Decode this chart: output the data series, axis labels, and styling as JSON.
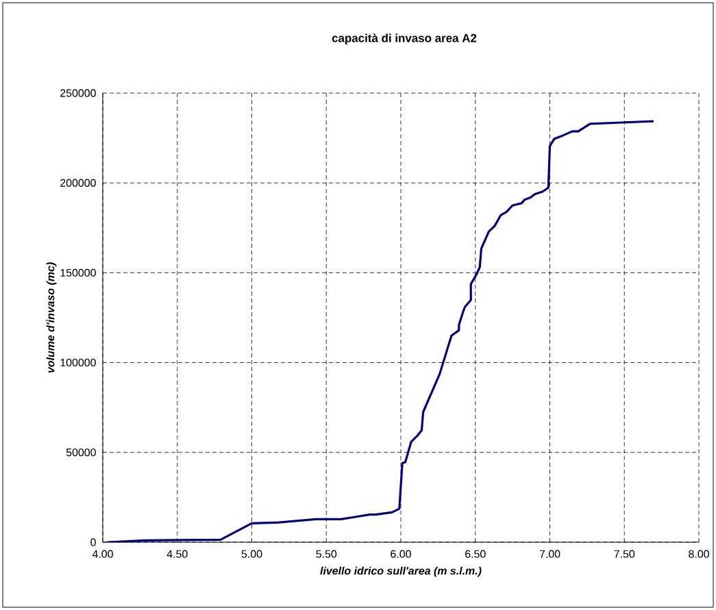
{
  "chart_data": {
    "type": "line",
    "title": "capacità di invaso area A2",
    "xlabel": "livello idrico sull'area (m s.l.m.)",
    "ylabel": "volume d'invaso (mc)",
    "x": [
      4.03,
      4.28,
      4.79,
      5.0,
      5.18,
      5.43,
      5.6,
      5.79,
      5.83,
      5.94,
      5.99,
      6.01,
      6.03,
      6.07,
      6.11,
      6.14,
      6.15,
      6.26,
      6.34,
      6.39,
      6.39,
      6.42,
      6.43,
      6.47,
      6.47,
      6.51,
      6.53,
      6.54,
      6.59,
      6.63,
      6.67,
      6.71,
      6.75,
      6.81,
      6.83,
      6.87,
      6.9,
      6.95,
      6.99,
      7.0,
      7.03,
      7.09,
      7.15,
      7.19,
      7.27,
      7.45,
      7.69
    ],
    "series": [
      {
        "color": "#000080",
        "values": [
          0,
          1000,
          1400,
          10500,
          11000,
          12800,
          12800,
          15400,
          15400,
          16600,
          18600,
          44000,
          44600,
          56000,
          59200,
          62300,
          72500,
          93500,
          115000,
          118000,
          121000,
          128800,
          131000,
          134800,
          143700,
          149400,
          153200,
          163400,
          172900,
          176100,
          182000,
          183900,
          187500,
          188700,
          190600,
          191900,
          193800,
          195100,
          197300,
          220500,
          224600,
          226500,
          228700,
          228700,
          232900,
          233500,
          234300
        ]
      }
    ],
    "xlim": [
      4,
      8
    ],
    "ylim": [
      0,
      250000
    ],
    "xticks": [
      {
        "value": 4,
        "label": "4.00"
      },
      {
        "value": 4.5,
        "label": "4.50"
      },
      {
        "value": 5,
        "label": "5.00"
      },
      {
        "value": 5.5,
        "label": "5.50"
      },
      {
        "value": 6,
        "label": "6.00"
      },
      {
        "value": 6.5,
        "label": "6.50"
      },
      {
        "value": 7,
        "label": "7.00"
      },
      {
        "value": 7.5,
        "label": "7.50"
      },
      {
        "value": 8,
        "label": "8.00"
      }
    ],
    "yticks": [
      0,
      50000,
      100000,
      150000,
      200000,
      250000
    ],
    "grid": true,
    "marker": "none",
    "line_style": "solid"
  }
}
